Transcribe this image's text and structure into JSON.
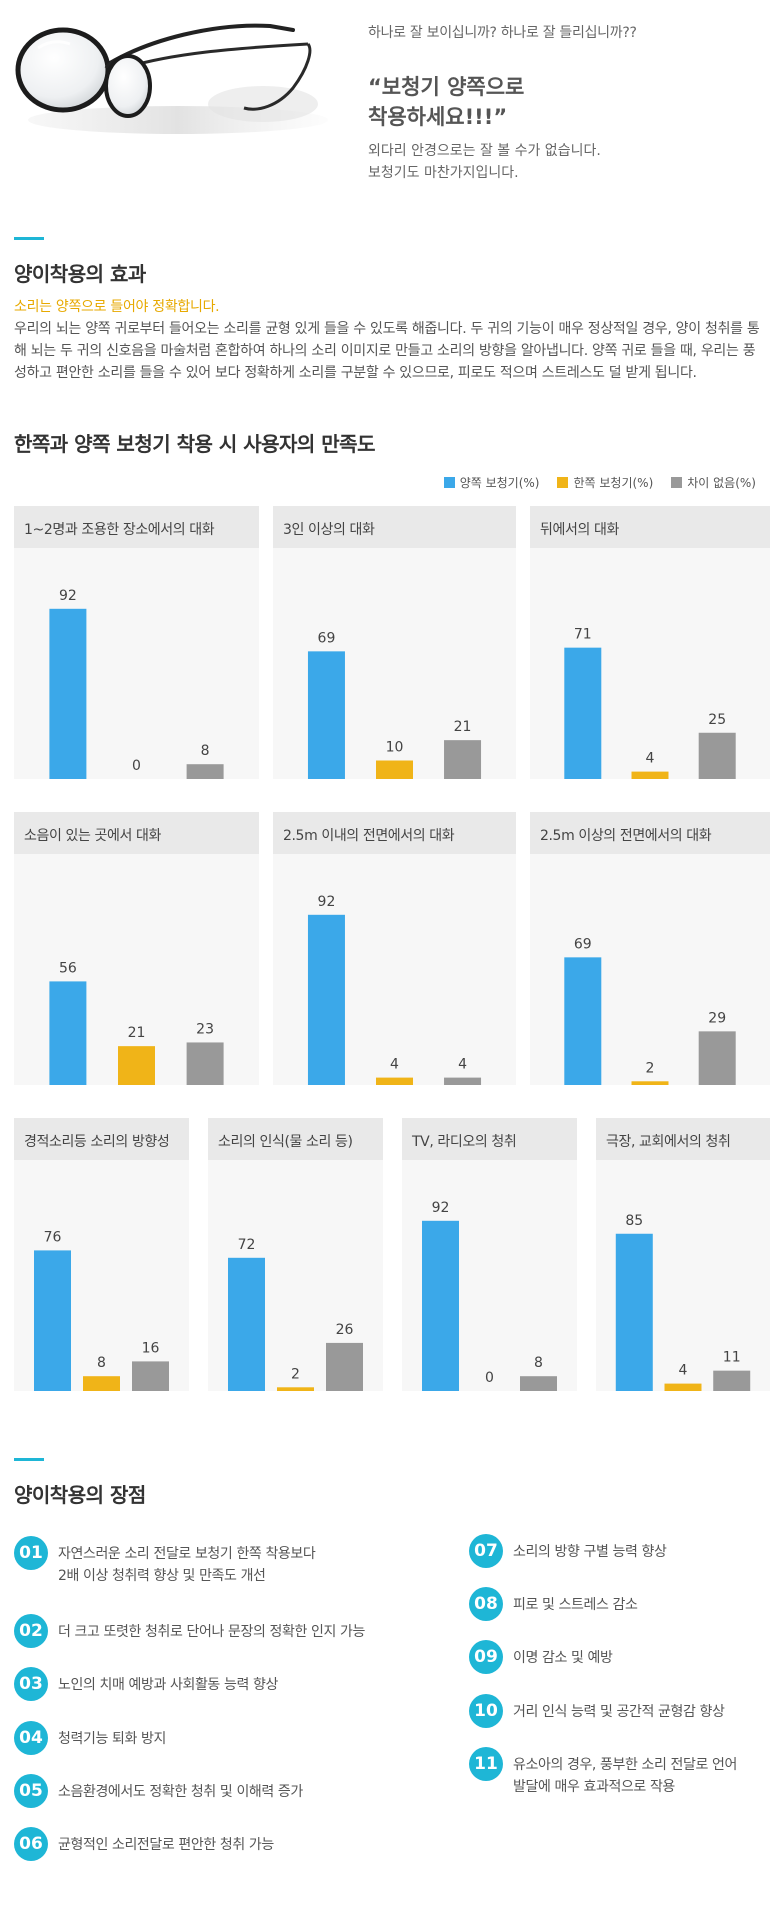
{
  "hero": {
    "question": "하나로 잘 보이십니까? 하나로 잘 들리십니까??",
    "title_line1": "“보청기 양쪽으로",
    "title_line2": "착용하세요!!!”",
    "desc_line1": "외다리 안경으로는 잘 볼 수가 없습니다.",
    "desc_line2": "보청기도 마찬가지입니다."
  },
  "effect": {
    "title": "양이착용의 효과",
    "subtitle": "소리는 양쪽으로 들어야 정확합니다.",
    "body": "우리의 뇌는 양쪽 귀로부터 들어오는 소리를 균형 있게 들을 수 있도록 해줍니다. 두 귀의 기능이 매우 정상적일 경우, 양이 청취를 통해 뇌는 두 귀의 신호음을 마술처럼 혼합하여 하나의 소리 이미지로 만들고 소리의 방향을 알아냅니다. 양쪽 귀로 들을 때, 우리는 풍성하고 편안한 소리를 들을 수 있어 보다 정확하게 소리를 구분할 수 있으므로, 피로도 적으며 스트레스도 덜 받게 됩니다."
  },
  "survey": {
    "title": "한쪽과 양쪽 보청기 착용 시 사용자의 만족도",
    "legend": [
      {
        "name": "양쪽 보청기(%)",
        "color": "#3ba8e9"
      },
      {
        "name": "한쪽 보청기(%)",
        "color": "#f0b418"
      },
      {
        "name": "차이 없음(%)",
        "color": "#999999"
      }
    ]
  },
  "chart_data": [
    {
      "type": "bar",
      "title": "1~2명과 조용한 장소에서의 대화",
      "categories": [
        "양쪽 보청기(%)",
        "한쪽 보청기(%)",
        "차이 없음(%)"
      ],
      "values": [
        92,
        0,
        8
      ],
      "ylim": [
        0,
        100
      ]
    },
    {
      "type": "bar",
      "title": "3인 이상의 대화",
      "categories": [
        "양쪽 보청기(%)",
        "한쪽 보청기(%)",
        "차이 없음(%)"
      ],
      "values": [
        69,
        10,
        21
      ],
      "ylim": [
        0,
        100
      ]
    },
    {
      "type": "bar",
      "title": "뒤에서의 대화",
      "categories": [
        "양쪽 보청기(%)",
        "한쪽 보청기(%)",
        "차이 없음(%)"
      ],
      "values": [
        71,
        4,
        25
      ],
      "ylim": [
        0,
        100
      ]
    },
    {
      "type": "bar",
      "title": "소음이 있는 곳에서 대화",
      "categories": [
        "양쪽 보청기(%)",
        "한쪽 보청기(%)",
        "차이 없음(%)"
      ],
      "values": [
        56,
        21,
        23
      ],
      "ylim": [
        0,
        100
      ]
    },
    {
      "type": "bar",
      "title": "2.5m 이내의 전면에서의 대화",
      "categories": [
        "양쪽 보청기(%)",
        "한쪽 보청기(%)",
        "차이 없음(%)"
      ],
      "values": [
        92,
        4,
        4
      ],
      "ylim": [
        0,
        100
      ]
    },
    {
      "type": "bar",
      "title": "2.5m 이상의 전면에서의 대화",
      "categories": [
        "양쪽 보청기(%)",
        "한쪽 보청기(%)",
        "차이 없음(%)"
      ],
      "values": [
        69,
        2,
        29
      ],
      "ylim": [
        0,
        100
      ]
    },
    {
      "type": "bar",
      "title": "경적소리등 소리의 방향성",
      "categories": [
        "양쪽 보청기(%)",
        "한쪽 보청기(%)",
        "차이 없음(%)"
      ],
      "values": [
        76,
        8,
        16
      ],
      "ylim": [
        0,
        100
      ]
    },
    {
      "type": "bar",
      "title": "소리의 인식(물 소리 등)",
      "categories": [
        "양쪽 보청기(%)",
        "한쪽 보청기(%)",
        "차이 없음(%)"
      ],
      "values": [
        72,
        2,
        26
      ],
      "ylim": [
        0,
        100
      ]
    },
    {
      "type": "bar",
      "title": "TV, 라디오의 청취",
      "categories": [
        "양쪽 보청기(%)",
        "한쪽 보청기(%)",
        "차이 없음(%)"
      ],
      "values": [
        92,
        0,
        8
      ],
      "ylim": [
        0,
        100
      ]
    },
    {
      "type": "bar",
      "title": "극장, 교회에서의 청취",
      "categories": [
        "양쪽 보청기(%)",
        "한쪽 보청기(%)",
        "차이 없음(%)"
      ],
      "values": [
        85,
        4,
        11
      ],
      "ylim": [
        0,
        100
      ]
    }
  ],
  "merits": {
    "title": "양이착용의 장점",
    "left": [
      {
        "num": "01",
        "text": "자연스러운 소리 전달로 보청기 한쪽 착용보다\n2배 이상 청취력 향상 및 만족도 개선"
      },
      {
        "num": "02",
        "text": "더 크고 또렷한 청취로 단어나 문장의 정확한 인지 가능"
      },
      {
        "num": "03",
        "text": "노인의 치매 예방과 사회활동 능력 향상"
      },
      {
        "num": "04",
        "text": "청력기능 퇴화 방지"
      },
      {
        "num": "05",
        "text": "소음환경에서도 정확한 청취 및 이해력 증가"
      },
      {
        "num": "06",
        "text": "균형적인 소리전달로 편안한 청취 가능"
      }
    ],
    "right": [
      {
        "num": "07",
        "text": "소리의 방향 구별 능력 향상"
      },
      {
        "num": "08",
        "text": "피로 및 스트레스 감소"
      },
      {
        "num": "09",
        "text": "이명 감소 및 예방"
      },
      {
        "num": "10",
        "text": "거리 인식 능력 및 공간적 균형감 향상"
      },
      {
        "num": "11",
        "text": "유소아의 경우, 풍부한 소리 전달로 언어\n발달에 매우 효과적으로 작용"
      }
    ]
  }
}
